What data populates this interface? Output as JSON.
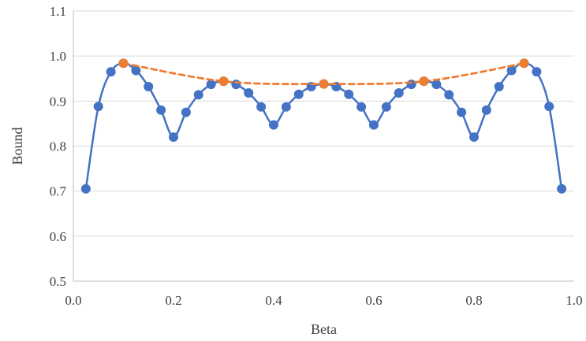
{
  "chart_data": {
    "type": "line",
    "xlabel": "Beta",
    "ylabel": "Bound",
    "xlim": [
      0.0,
      1.0
    ],
    "ylim": [
      0.5,
      1.1
    ],
    "x_ticks": [
      0.0,
      0.2,
      0.4,
      0.6,
      0.8,
      1.0
    ],
    "y_ticks": [
      0.5,
      0.6,
      0.7,
      0.8,
      0.9,
      1.0,
      1.1
    ],
    "x_tick_labels": [
      "0.0",
      "0.2",
      "0.4",
      "0.6",
      "0.8",
      "1.0"
    ],
    "y_tick_labels": [
      "0.5",
      "0.6",
      "0.7",
      "0.8",
      "0.9",
      "1.0",
      "1.1"
    ],
    "grid": "horizontal",
    "legend": "none",
    "series": [
      {
        "style": "solid-smooth-markers",
        "color": "#4472C4",
        "x": [
          0.025,
          0.05,
          0.075,
          0.1,
          0.125,
          0.15,
          0.175,
          0.2,
          0.225,
          0.25,
          0.275,
          0.3,
          0.325,
          0.35,
          0.375,
          0.4,
          0.425,
          0.45,
          0.475,
          0.5,
          0.525,
          0.55,
          0.575,
          0.6,
          0.625,
          0.65,
          0.675,
          0.7,
          0.725,
          0.75,
          0.775,
          0.8,
          0.825,
          0.85,
          0.875,
          0.9,
          0.925,
          0.95,
          0.975
        ],
        "y": [
          0.705,
          0.888,
          0.965,
          0.984,
          0.968,
          0.932,
          0.88,
          0.82,
          0.875,
          0.914,
          0.937,
          0.944,
          0.937,
          0.918,
          0.887,
          0.847,
          0.887,
          0.915,
          0.932,
          0.938,
          0.932,
          0.915,
          0.887,
          0.847,
          0.887,
          0.918,
          0.937,
          0.944,
          0.937,
          0.914,
          0.875,
          0.82,
          0.88,
          0.932,
          0.968,
          0.984,
          0.965,
          0.888,
          0.705
        ]
      },
      {
        "style": "dashed-smooth-markers",
        "color": "#ED7D31",
        "x": [
          0.1,
          0.3,
          0.5,
          0.7,
          0.9
        ],
        "y": [
          0.984,
          0.944,
          0.938,
          0.944,
          0.984
        ]
      }
    ]
  }
}
